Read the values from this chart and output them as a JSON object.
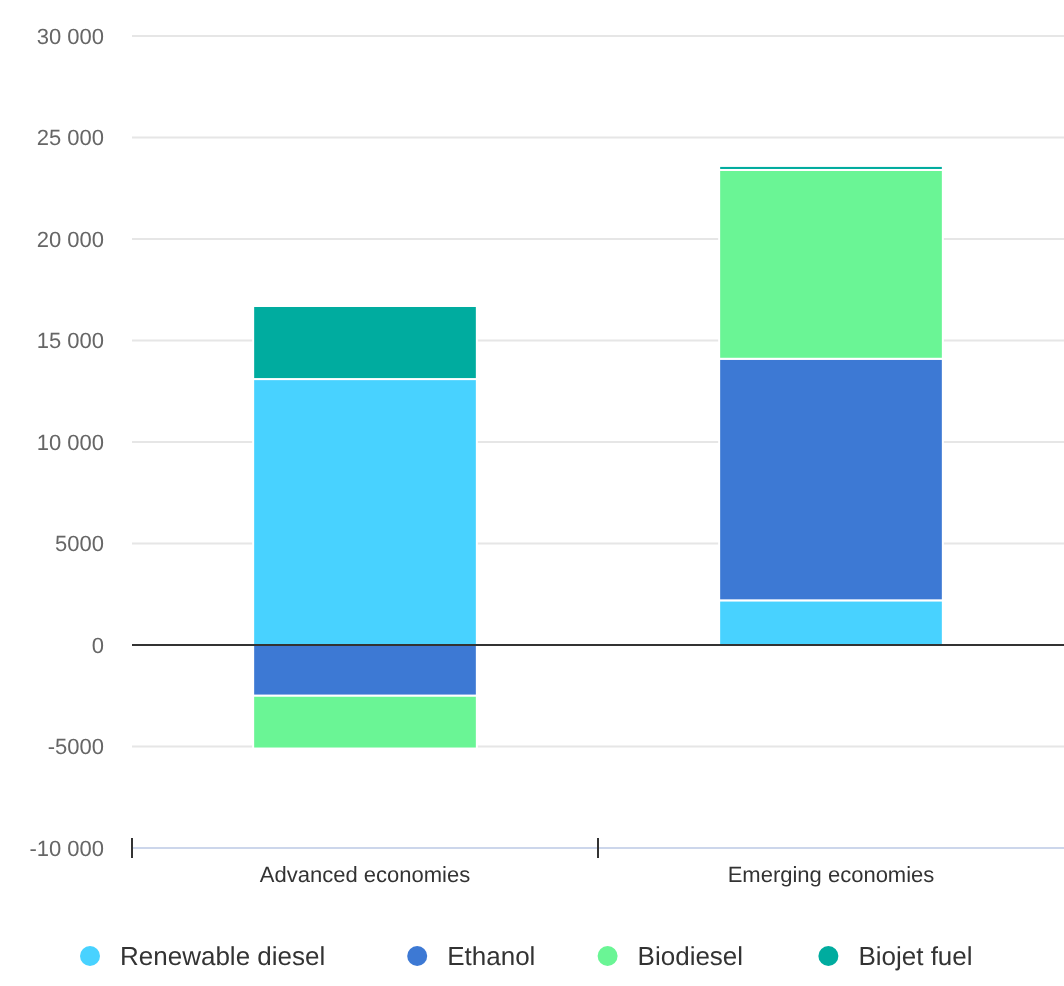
{
  "chart_data": {
    "type": "bar",
    "stacked": true,
    "categories": [
      "Advanced economies",
      "Emerging economies"
    ],
    "series": [
      {
        "name": "Renewable diesel",
        "color": "#48d2ff",
        "values": [
          13100,
          2200
        ]
      },
      {
        "name": "Ethanol",
        "color": "#3d79d4",
        "values": [
          -2500,
          11900
        ]
      },
      {
        "name": "Biodiesel",
        "color": "#6af595",
        "values": [
          -2600,
          9300
        ]
      },
      {
        "name": "Biojet fuel",
        "color": "#00ac9f",
        "values": [
          3600,
          200
        ]
      }
    ],
    "ylim": [
      -10000,
      30000
    ],
    "yticks": [
      {
        "value": -10000,
        "label": "-10 000"
      },
      -5000,
      0,
      5000,
      {
        "value": 10000,
        "label": "10 000"
      },
      {
        "value": 15000,
        "label": "15 000"
      },
      {
        "value": 20000,
        "label": "20 000"
      },
      {
        "value": 25000,
        "label": "25 000"
      },
      {
        "value": 30000,
        "label": "30 000"
      }
    ],
    "grid": "y",
    "legend": "bottom"
  }
}
